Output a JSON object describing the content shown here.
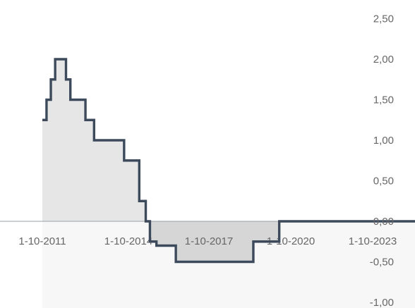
{
  "chart_data": {
    "type": "area",
    "step": true,
    "x_type": "date",
    "x_tick_labels": [
      "1-10-2011",
      "1-10-2014",
      "1-10-2017",
      "1-10-2020",
      "1-10-2023"
    ],
    "y_tick_labels": [
      "2,50",
      "2,00",
      "1,50",
      "1,00",
      "0,50",
      "0,00",
      "-0,50",
      "-1,00"
    ],
    "ylim": [
      -1.0,
      2.5
    ],
    "series": [
      {
        "points": [
          {
            "x": "2011-01-01",
            "y": 1.25
          },
          {
            "x": "2011-03-01",
            "y": 1.5
          },
          {
            "x": "2011-05-01",
            "y": 1.75
          },
          {
            "x": "2011-07-01",
            "y": 2.0
          },
          {
            "x": "2011-12-01",
            "y": 1.75
          },
          {
            "x": "2012-02-01",
            "y": 1.5
          },
          {
            "x": "2012-09-01",
            "y": 1.25
          },
          {
            "x": "2013-01-01",
            "y": 1.0
          },
          {
            "x": "2014-03-01",
            "y": 0.75
          },
          {
            "x": "2014-10-01",
            "y": 0.25
          },
          {
            "x": "2015-01-01",
            "y": 0.0
          },
          {
            "x": "2015-03-01",
            "y": -0.25
          },
          {
            "x": "2015-06-01",
            "y": -0.3
          },
          {
            "x": "2016-03-01",
            "y": -0.5
          },
          {
            "x": "2019-03-01",
            "y": -0.25
          },
          {
            "x": "2020-03-01",
            "y": 0.0
          },
          {
            "x": "2025-06-01",
            "y": 0.0
          }
        ]
      }
    ],
    "colors": {
      "line": "#3d4a5c",
      "fill_positive": "#e6e6e6",
      "fill_negative": "#d6d6d6",
      "zero_line": "#9aa0a8",
      "background_below_zero": "#f7f7f7"
    },
    "grid": false
  }
}
